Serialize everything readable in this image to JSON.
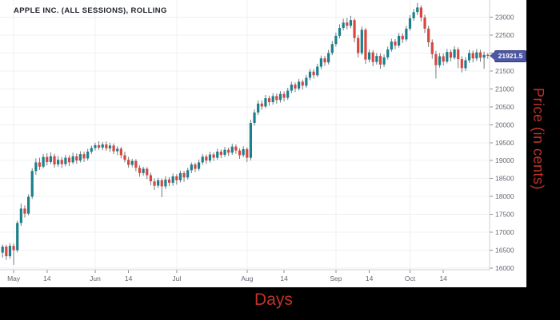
{
  "chart": {
    "title": "APPLE INC. (ALL SESSIONS), ROLLING",
    "xlabel": "Days",
    "ylabel": "Price (in cents)",
    "last_price_label": "21921.5"
  },
  "colors": {
    "up": "#1a808d",
    "down": "#d9463e",
    "wick": "#75787f",
    "grid": "#eef0f4",
    "tick": "#8a8d94",
    "axis_text": "#62666f",
    "axis_line": "#cfd2da",
    "title_text": "#22262f",
    "tag_bg": "#4d57a4",
    "tag_border": "#333c7d",
    "tag_text": "#ffffff",
    "panel_bg": "#ffffff",
    "outer_bg": "#000000",
    "axis_title_red": "#c13327"
  },
  "chart_data": {
    "type": "candlestick",
    "title": "APPLE INC. (ALL SESSIONS), ROLLING",
    "xlabel": "Days",
    "ylabel": "Price (in cents)",
    "legend": [],
    "grid": true,
    "ylim": [
      15910,
      23480
    ],
    "y_ticks": [
      16000,
      16500,
      17000,
      17500,
      18000,
      18500,
      19000,
      19500,
      20000,
      20500,
      21000,
      21500,
      22000,
      22500,
      23000
    ],
    "x_ticks": [
      {
        "label": "May",
        "index": 3,
        "month": true
      },
      {
        "label": "14",
        "index": 12,
        "month": false
      },
      {
        "label": "Jun",
        "index": 25,
        "month": true
      },
      {
        "label": "14",
        "index": 34,
        "month": false
      },
      {
        "label": "Jul",
        "index": 47,
        "month": true
      },
      {
        "label": "Aug",
        "index": 66,
        "month": true
      },
      {
        "label": "14",
        "index": 76,
        "month": false
      },
      {
        "label": "Sep",
        "index": 90,
        "month": true
      },
      {
        "label": "14",
        "index": 99,
        "month": false
      },
      {
        "label": "Oct",
        "index": 110,
        "month": true
      },
      {
        "label": "14",
        "index": 119,
        "month": false
      }
    ],
    "last_price": 21921.5,
    "candles_format": [
      "open",
      "high",
      "low",
      "close"
    ],
    "candles": [
      [
        16430,
        16660,
        16290,
        16600
      ],
      [
        16600,
        16650,
        16230,
        16330
      ],
      [
        16330,
        16700,
        16260,
        16620
      ],
      [
        16620,
        16690,
        16090,
        16500
      ],
      [
        16500,
        17320,
        16440,
        17260
      ],
      [
        17260,
        17800,
        17180,
        17660
      ],
      [
        17660,
        17750,
        17410,
        17520
      ],
      [
        17520,
        18060,
        17470,
        17990
      ],
      [
        17990,
        18790,
        17930,
        18710
      ],
      [
        18710,
        19060,
        18600,
        18950
      ],
      [
        18950,
        19080,
        18740,
        18830
      ],
      [
        18830,
        19180,
        18780,
        19100
      ],
      [
        19100,
        19200,
        18870,
        18960
      ],
      [
        18960,
        19230,
        18900,
        19120
      ],
      [
        19120,
        19190,
        18800,
        18890
      ],
      [
        18890,
        19130,
        18820,
        19020
      ],
      [
        19020,
        19100,
        18790,
        18900
      ],
      [
        18900,
        19160,
        18840,
        19080
      ],
      [
        19080,
        19150,
        18850,
        18950
      ],
      [
        18950,
        19220,
        18900,
        19120
      ],
      [
        19120,
        19200,
        18910,
        19000
      ],
      [
        19000,
        19260,
        18950,
        19180
      ],
      [
        19180,
        19250,
        18960,
        19060
      ],
      [
        19060,
        19330,
        19000,
        19250
      ],
      [
        19250,
        19420,
        19180,
        19350
      ],
      [
        19350,
        19500,
        19280,
        19430
      ],
      [
        19430,
        19540,
        19300,
        19360
      ],
      [
        19360,
        19520,
        19290,
        19450
      ],
      [
        19450,
        19530,
        19270,
        19340
      ],
      [
        19340,
        19500,
        19240,
        19420
      ],
      [
        19420,
        19480,
        19180,
        19260
      ],
      [
        19260,
        19400,
        19150,
        19330
      ],
      [
        19330,
        19380,
        19060,
        19150
      ],
      [
        19150,
        19250,
        18950,
        19020
      ],
      [
        19020,
        19100,
        18800,
        18880
      ],
      [
        18880,
        19050,
        18810,
        18990
      ],
      [
        18990,
        19040,
        18700,
        18800
      ],
      [
        18800,
        18870,
        18550,
        18650
      ],
      [
        18650,
        18830,
        18580,
        18770
      ],
      [
        18770,
        18820,
        18480,
        18590
      ],
      [
        18590,
        18660,
        18310,
        18420
      ],
      [
        18420,
        18500,
        18180,
        18300
      ],
      [
        18300,
        18520,
        18230,
        18450
      ],
      [
        18450,
        18500,
        17980,
        18280
      ],
      [
        18280,
        18560,
        18200,
        18470
      ],
      [
        18470,
        18540,
        18290,
        18380
      ],
      [
        18380,
        18640,
        18300,
        18560
      ],
      [
        18560,
        18620,
        18330,
        18450
      ],
      [
        18450,
        18720,
        18390,
        18650
      ],
      [
        18650,
        18710,
        18410,
        18530
      ],
      [
        18530,
        18800,
        18470,
        18730
      ],
      [
        18730,
        18950,
        18650,
        18890
      ],
      [
        18890,
        18940,
        18680,
        18770
      ],
      [
        18770,
        19030,
        18710,
        18950
      ],
      [
        18950,
        19180,
        18880,
        19110
      ],
      [
        19110,
        19170,
        18910,
        19000
      ],
      [
        19000,
        19250,
        18940,
        19170
      ],
      [
        19170,
        19230,
        18990,
        19080
      ],
      [
        19080,
        19330,
        19020,
        19250
      ],
      [
        19250,
        19310,
        19070,
        19160
      ],
      [
        19160,
        19380,
        19100,
        19300
      ],
      [
        19300,
        19360,
        19130,
        19220
      ],
      [
        19220,
        19470,
        19160,
        19390
      ],
      [
        19390,
        19450,
        19190,
        19280
      ],
      [
        19280,
        19340,
        19050,
        19150
      ],
      [
        19150,
        19400,
        19090,
        19320
      ],
      [
        19320,
        19370,
        18960,
        19080
      ],
      [
        19080,
        20140,
        19000,
        20050
      ],
      [
        20050,
        20430,
        19970,
        20340
      ],
      [
        20340,
        20680,
        20270,
        20590
      ],
      [
        20590,
        20680,
        20420,
        20510
      ],
      [
        20510,
        20830,
        20460,
        20740
      ],
      [
        20740,
        20810,
        20530,
        20630
      ],
      [
        20630,
        20880,
        20560,
        20800
      ],
      [
        20800,
        20870,
        20590,
        20690
      ],
      [
        20690,
        20940,
        20620,
        20860
      ],
      [
        20860,
        20930,
        20650,
        20750
      ],
      [
        20750,
        21030,
        20690,
        20950
      ],
      [
        20950,
        21200,
        20880,
        21120
      ],
      [
        21120,
        21180,
        20910,
        21010
      ],
      [
        21010,
        21280,
        20950,
        21200
      ],
      [
        21200,
        21260,
        20980,
        21090
      ],
      [
        21090,
        21390,
        21030,
        21310
      ],
      [
        21310,
        21560,
        21240,
        21480
      ],
      [
        21480,
        21550,
        21290,
        21380
      ],
      [
        21380,
        21700,
        21330,
        21620
      ],
      [
        21620,
        21930,
        21550,
        21850
      ],
      [
        21850,
        21920,
        21640,
        21740
      ],
      [
        21740,
        22090,
        21680,
        22000
      ],
      [
        22000,
        22340,
        21940,
        22250
      ],
      [
        22250,
        22570,
        22180,
        22480
      ],
      [
        22480,
        22800,
        22410,
        22700
      ],
      [
        22700,
        22960,
        22630,
        22850
      ],
      [
        22850,
        22980,
        22660,
        22760
      ],
      [
        22760,
        23040,
        22690,
        22920
      ],
      [
        22920,
        22970,
        22300,
        22420
      ],
      [
        22420,
        22500,
        21880,
        22000
      ],
      [
        22000,
        22740,
        21940,
        22650
      ],
      [
        22650,
        22700,
        21700,
        21820
      ],
      [
        21820,
        22100,
        21740,
        22020
      ],
      [
        22020,
        22080,
        21630,
        21750
      ],
      [
        21750,
        22000,
        21680,
        21920
      ],
      [
        21920,
        21990,
        21560,
        21680
      ],
      [
        21680,
        21960,
        21610,
        21880
      ],
      [
        21880,
        22180,
        21820,
        22100
      ],
      [
        22100,
        22400,
        22040,
        22320
      ],
      [
        22320,
        22390,
        22110,
        22210
      ],
      [
        22210,
        22560,
        22150,
        22480
      ],
      [
        22480,
        22550,
        22280,
        22380
      ],
      [
        22380,
        22760,
        22320,
        22680
      ],
      [
        22680,
        23060,
        22620,
        22970
      ],
      [
        22970,
        23230,
        22900,
        23140
      ],
      [
        23140,
        23400,
        23060,
        23270
      ],
      [
        23270,
        23330,
        22880,
        22990
      ],
      [
        22990,
        23070,
        22560,
        22680
      ],
      [
        22680,
        22760,
        22170,
        22300
      ],
      [
        22300,
        22380,
        21840,
        21970
      ],
      [
        21970,
        22060,
        21290,
        21660
      ],
      [
        21660,
        22000,
        21590,
        21910
      ],
      [
        21910,
        21990,
        21650,
        21760
      ],
      [
        21760,
        22120,
        21710,
        22030
      ],
      [
        22030,
        22100,
        21770,
        21870
      ],
      [
        21870,
        22190,
        21820,
        22100
      ],
      [
        22100,
        22160,
        21580,
        21830
      ],
      [
        21830,
        21910,
        21460,
        21580
      ],
      [
        21580,
        21890,
        21500,
        21800
      ],
      [
        21800,
        22090,
        21720,
        22000
      ],
      [
        22000,
        22070,
        21740,
        21850
      ],
      [
        21850,
        22110,
        21780,
        22020
      ],
      [
        22020,
        22090,
        21760,
        21870
      ],
      [
        21870,
        22040,
        21560,
        21950
      ],
      [
        21950,
        22000,
        21840,
        21921.5
      ]
    ]
  }
}
